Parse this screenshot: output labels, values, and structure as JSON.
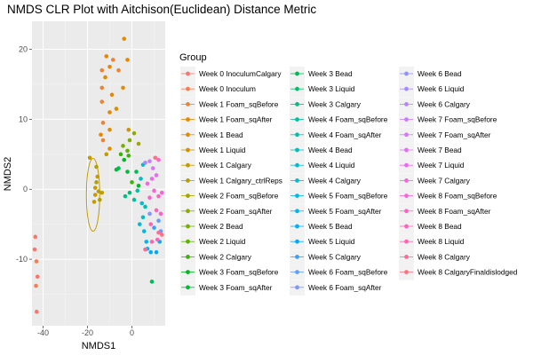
{
  "chart_data": {
    "type": "scatter",
    "title": "NMDS CLR Plot with Aitchison(Euclidean) Distance Metric",
    "xlabel": "NMDS1",
    "ylabel": "NMDS2",
    "xlim": [
      -45,
      15
    ],
    "ylim": [
      -19.5,
      24
    ],
    "x_ticks": [
      -40,
      -20,
      0
    ],
    "y_ticks": [
      -10,
      0,
      10,
      20
    ],
    "grid": true,
    "legend": {
      "title": "Group",
      "placement": "right",
      "columns": 3,
      "entries": [
        {
          "label": "Week 0 InoculumCalgary",
          "color": "#F8766D"
        },
        {
          "label": "Week 0 Inoculum",
          "color": "#F47D51"
        },
        {
          "label": "Week 1 Foam_sqBefore",
          "color": "#EE8233"
        },
        {
          "label": "Week 1 Foam_sqAfter",
          "color": "#E58700"
        },
        {
          "label": "Week 1 Bead",
          "color": "#DC8E00"
        },
        {
          "label": "Week 1 Liquid",
          "color": "#D09400"
        },
        {
          "label": "Week 1 Calgary",
          "color": "#C39A00"
        },
        {
          "label": "Week 1 Calgary_ctrlReps",
          "color": "#B4A000"
        },
        {
          "label": "Week 2 Foam_sqBefore",
          "color": "#A3A500"
        },
        {
          "label": "Week 2 Foam_sqAfter",
          "color": "#8FAA00"
        },
        {
          "label": "Week 2 Bead",
          "color": "#78AF00"
        },
        {
          "label": "Week 2 Liquid",
          "color": "#5BB300"
        },
        {
          "label": "Week 2 Calgary",
          "color": "#39B600"
        },
        {
          "label": "Week 3 Foam_sqBefore",
          "color": "#00B81F"
        },
        {
          "label": "Week 3 Foam_sqAfter",
          "color": "#00BA38"
        },
        {
          "label": "Week 3 Bead",
          "color": "#00BC56"
        },
        {
          "label": "Week 3 Liquid",
          "color": "#00BD70"
        },
        {
          "label": "Week 3 Calgary",
          "color": "#00BE86"
        },
        {
          "label": "Week 4 Foam_sqBefore",
          "color": "#00BF99"
        },
        {
          "label": "Week 4 Foam_sqAfter",
          "color": "#00C0AB"
        },
        {
          "label": "Week 4 Bead",
          "color": "#00BFBC"
        },
        {
          "label": "Week 4 Liquid",
          "color": "#00BDCB"
        },
        {
          "label": "Week 4 Calgary",
          "color": "#00BBDA"
        },
        {
          "label": "Week 5 Foam_sqBefore",
          "color": "#00B8E7"
        },
        {
          "label": "Week 5 Foam_sqAfter",
          "color": "#00B4F0"
        },
        {
          "label": "Week 5 Bead",
          "color": "#00B0F6"
        },
        {
          "label": "Week 5 Liquid",
          "color": "#00ABFD"
        },
        {
          "label": "Week 5 Calgary",
          "color": "#35A2FF"
        },
        {
          "label": "Week 6 Foam_sqBefore",
          "color": "#619CFF"
        },
        {
          "label": "Week 6 Foam_sqAfter",
          "color": "#7F96FF"
        },
        {
          "label": "Week 6 Bead",
          "color": "#8F91FF"
        },
        {
          "label": "Week 6 Liquid",
          "color": "#A58AFF"
        },
        {
          "label": "Week 6 Calgary",
          "color": "#B983FF"
        },
        {
          "label": "Week 7 Foam_sqBefore",
          "color": "#C77CFF"
        },
        {
          "label": "Week 7 Foam_sqAfter",
          "color": "#D675FE"
        },
        {
          "label": "Week 7 Bead",
          "color": "#E36EF6"
        },
        {
          "label": "Week 7 Liquid",
          "color": "#EE68EE"
        },
        {
          "label": "Week 7 Calgary",
          "color": "#F564E3"
        },
        {
          "label": "Week 8 Foam_sqBefore",
          "color": "#FA62D5"
        },
        {
          "label": "Week 8 Foam_sqAfter",
          "color": "#FD61C7"
        },
        {
          "label": "Week 8 Bead",
          "color": "#FF62BC"
        },
        {
          "label": "Week 8 Liquid",
          "color": "#FF65AE"
        },
        {
          "label": "Week 8 Calgary",
          "color": "#FF6A98"
        },
        {
          "label": "Week 8 CalgaryFinaldislodged",
          "color": "#FC717F"
        }
      ]
    },
    "ellipse": {
      "center": [
        -17.5,
        -0.8
      ],
      "rx": 3.0,
      "ry": 5.2,
      "color": "#C39A00"
    },
    "points": [
      {
        "x": -43.5,
        "y": -6.8,
        "g": 0
      },
      {
        "x": -43.8,
        "y": -8.6,
        "g": 0
      },
      {
        "x": -43.0,
        "y": -10.3,
        "g": 1
      },
      {
        "x": -42.5,
        "y": -12.5,
        "g": 0
      },
      {
        "x": -43.2,
        "y": -13.8,
        "g": 1
      },
      {
        "x": -42.9,
        "y": -17.5,
        "g": 0
      },
      {
        "x": -13.5,
        "y": 17.0,
        "g": 2
      },
      {
        "x": -11.5,
        "y": 19.0,
        "g": 3
      },
      {
        "x": -8.5,
        "y": 18.5,
        "g": 2
      },
      {
        "x": -3.5,
        "y": 21.5,
        "g": 4
      },
      {
        "x": -10.0,
        "y": 17.5,
        "g": 3
      },
      {
        "x": -6.0,
        "y": 17.0,
        "g": 2
      },
      {
        "x": -12.0,
        "y": 16.0,
        "g": 4
      },
      {
        "x": -2.0,
        "y": 18.5,
        "g": 3
      },
      {
        "x": -13.5,
        "y": 14.5,
        "g": 2
      },
      {
        "x": -4.0,
        "y": 14.5,
        "g": 4
      },
      {
        "x": -9.0,
        "y": 13.5,
        "g": 3
      },
      {
        "x": -13.5,
        "y": 12.5,
        "g": 2
      },
      {
        "x": -7.0,
        "y": 11.5,
        "g": 4
      },
      {
        "x": -10.0,
        "y": 11.0,
        "g": 3
      },
      {
        "x": -13.0,
        "y": 9.5,
        "g": 2
      },
      {
        "x": -10.0,
        "y": 8.5,
        "g": 4
      },
      {
        "x": -14.0,
        "y": 7.8,
        "g": 3
      },
      {
        "x": -13.0,
        "y": 7.0,
        "g": 2
      },
      {
        "x": -10.0,
        "y": 5.8,
        "g": 4
      },
      {
        "x": -1.5,
        "y": 8.5,
        "g": 5
      },
      {
        "x": -11.5,
        "y": 5.0,
        "g": 6
      },
      {
        "x": -19.0,
        "y": 4.5,
        "g": 6
      },
      {
        "x": -16.0,
        "y": 3.2,
        "g": 7
      },
      {
        "x": -15.5,
        "y": 1.8,
        "g": 6
      },
      {
        "x": -16.0,
        "y": 1.0,
        "g": 7
      },
      {
        "x": -16.5,
        "y": 0.2,
        "g": 6
      },
      {
        "x": -15.0,
        "y": -0.3,
        "g": 7
      },
      {
        "x": -13.5,
        "y": -0.5,
        "g": 6
      },
      {
        "x": -16.5,
        "y": -0.8,
        "g": 6
      },
      {
        "x": -14.5,
        "y": -1.5,
        "g": 7
      },
      {
        "x": -17.0,
        "y": -1.8,
        "g": 6
      },
      {
        "x": 1.0,
        "y": 8.0,
        "g": 9
      },
      {
        "x": 3.0,
        "y": 6.5,
        "g": 8
      },
      {
        "x": -1.0,
        "y": 7.0,
        "g": 10
      },
      {
        "x": -4.0,
        "y": 6.2,
        "g": 10
      },
      {
        "x": -2.0,
        "y": 5.5,
        "g": 11
      },
      {
        "x": -5.0,
        "y": 5.0,
        "g": 12
      },
      {
        "x": -1.5,
        "y": 4.8,
        "g": 12
      },
      {
        "x": -3.5,
        "y": 4.2,
        "g": 13
      },
      {
        "x": -2.0,
        "y": 2.5,
        "g": 14
      },
      {
        "x": -6.0,
        "y": 3.0,
        "g": 15
      },
      {
        "x": -7.0,
        "y": 2.8,
        "g": 14
      },
      {
        "x": 2.0,
        "y": 2.5,
        "g": 15
      },
      {
        "x": 0.0,
        "y": 1.0,
        "g": 12
      },
      {
        "x": 3.0,
        "y": 0.5,
        "g": 13
      },
      {
        "x": -1.0,
        "y": -0.5,
        "g": 16
      },
      {
        "x": -3.0,
        "y": -1.0,
        "g": 17
      },
      {
        "x": 1.0,
        "y": -1.5,
        "g": 18
      },
      {
        "x": 2.5,
        "y": -0.2,
        "g": 19
      },
      {
        "x": 4.0,
        "y": 1.5,
        "g": 20
      },
      {
        "x": 5.0,
        "y": 3.5,
        "g": 21
      },
      {
        "x": 4.5,
        "y": -2.0,
        "g": 22
      },
      {
        "x": 6.0,
        "y": -2.5,
        "g": 19
      },
      {
        "x": 5.0,
        "y": -4.0,
        "g": 21
      },
      {
        "x": 3.5,
        "y": -5.0,
        "g": 22
      },
      {
        "x": 5.5,
        "y": -6.0,
        "g": 23
      },
      {
        "x": 6.5,
        "y": -7.5,
        "g": 24
      },
      {
        "x": 7.0,
        "y": -8.5,
        "g": 24
      },
      {
        "x": 8.5,
        "y": -9.0,
        "g": 25
      },
      {
        "x": 11.0,
        "y": -9.0,
        "g": 26
      },
      {
        "x": 12.5,
        "y": -7.5,
        "g": 25
      },
      {
        "x": 10.0,
        "y": -5.5,
        "g": 27
      },
      {
        "x": 12.0,
        "y": -4.5,
        "g": 28
      },
      {
        "x": 8.0,
        "y": -3.5,
        "g": 29
      },
      {
        "x": 13.0,
        "y": -6.0,
        "g": 28
      },
      {
        "x": 9.0,
        "y": -13.2,
        "g": 15
      },
      {
        "x": 6.0,
        "y": 3.8,
        "g": 31
      },
      {
        "x": 8.0,
        "y": 4.0,
        "g": 33
      },
      {
        "x": 9.5,
        "y": 3.0,
        "g": 34
      },
      {
        "x": 11.0,
        "y": 2.0,
        "g": 35
      },
      {
        "x": 9.0,
        "y": 1.5,
        "g": 36
      },
      {
        "x": 7.0,
        "y": 0.8,
        "g": 37
      },
      {
        "x": 10.0,
        "y": -0.2,
        "g": 38
      },
      {
        "x": 13.5,
        "y": -0.5,
        "g": 38
      },
      {
        "x": 12.0,
        "y": -1.0,
        "g": 39
      },
      {
        "x": 8.0,
        "y": -1.2,
        "g": 39
      },
      {
        "x": 11.0,
        "y": -3.0,
        "g": 40
      },
      {
        "x": 8.5,
        "y": -5.0,
        "g": 41
      },
      {
        "x": 12.0,
        "y": -6.2,
        "g": 42
      },
      {
        "x": 13.5,
        "y": -6.5,
        "g": 43
      },
      {
        "x": 11.5,
        "y": -7.2,
        "g": 40
      },
      {
        "x": 9.0,
        "y": -7.5,
        "g": 41
      },
      {
        "x": 6.0,
        "y": -8.6,
        "g": 42
      },
      {
        "x": 10.5,
        "y": 4.5,
        "g": 43
      },
      {
        "x": 12.0,
        "y": 4.2,
        "g": 38
      },
      {
        "x": 13.0,
        "y": -3.5,
        "g": 39
      }
    ]
  }
}
